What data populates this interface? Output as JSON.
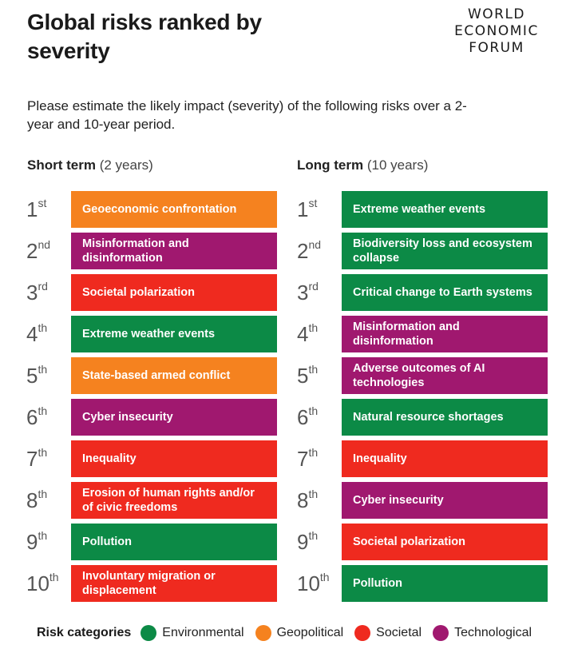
{
  "title": "Global risks ranked by severity",
  "logo": {
    "line1": "WORLD",
    "line2": "ECONOMIC",
    "line3": "FORUM"
  },
  "subtitle": "Please estimate the likely impact (severity) of the following risks over a 2-year and 10-year period.",
  "short_term": {
    "heading": "Short term",
    "period": "(2 years)",
    "rows": [
      {
        "rank_num": "1",
        "rank_suffix": "st",
        "risk": "Geoeconomic confrontation",
        "category": "geopolitical"
      },
      {
        "rank_num": "2",
        "rank_suffix": "nd",
        "risk": "Misinformation and disinformation",
        "category": "technological"
      },
      {
        "rank_num": "3",
        "rank_suffix": "rd",
        "risk": "Societal polarization",
        "category": "societal"
      },
      {
        "rank_num": "4",
        "rank_suffix": "th",
        "risk": "Extreme weather events",
        "category": "environmental"
      },
      {
        "rank_num": "5",
        "rank_suffix": "th",
        "risk": "State-based armed conflict",
        "category": "geopolitical"
      },
      {
        "rank_num": "6",
        "rank_suffix": "th",
        "risk": "Cyber insecurity",
        "category": "technological"
      },
      {
        "rank_num": "7",
        "rank_suffix": "th",
        "risk": "Inequality",
        "category": "societal"
      },
      {
        "rank_num": "8",
        "rank_suffix": "th",
        "risk": "Erosion of human rights and/or of civic freedoms",
        "category": "societal"
      },
      {
        "rank_num": "9",
        "rank_suffix": "th",
        "risk": "Pollution",
        "category": "environmental"
      },
      {
        "rank_num": "10",
        "rank_suffix": "th",
        "risk": "Involuntary migration or displacement",
        "category": "societal"
      }
    ]
  },
  "long_term": {
    "heading": "Long term",
    "period": "(10 years)",
    "rows": [
      {
        "rank_num": "1",
        "rank_suffix": "st",
        "risk": "Extreme weather events",
        "category": "environmental"
      },
      {
        "rank_num": "2",
        "rank_suffix": "nd",
        "risk": "Biodiversity loss and ecosystem collapse",
        "category": "environmental"
      },
      {
        "rank_num": "3",
        "rank_suffix": "rd",
        "risk": "Critical change to Earth systems",
        "category": "environmental"
      },
      {
        "rank_num": "4",
        "rank_suffix": "th",
        "risk": "Misinformation and disinformation",
        "category": "technological"
      },
      {
        "rank_num": "5",
        "rank_suffix": "th",
        "risk": "Adverse outcomes of AI technologies",
        "category": "technological"
      },
      {
        "rank_num": "6",
        "rank_suffix": "th",
        "risk": "Natural resource shortages",
        "category": "environmental"
      },
      {
        "rank_num": "7",
        "rank_suffix": "th",
        "risk": "Inequality",
        "category": "societal"
      },
      {
        "rank_num": "8",
        "rank_suffix": "th",
        "risk": "Cyber insecurity",
        "category": "technological"
      },
      {
        "rank_num": "9",
        "rank_suffix": "th",
        "risk": "Societal polarization",
        "category": "societal"
      },
      {
        "rank_num": "10",
        "rank_suffix": "th",
        "risk": "Pollution",
        "category": "environmental"
      }
    ]
  },
  "legend": {
    "title": "Risk categories",
    "items": [
      {
        "key": "environmental",
        "label": "Environmental",
        "color": "#0c8a46"
      },
      {
        "key": "geopolitical",
        "label": "Geopolitical",
        "color": "#f5821f"
      },
      {
        "key": "societal",
        "label": "Societal",
        "color": "#ef2a1f"
      },
      {
        "key": "technological",
        "label": "Technological",
        "color": "#a0186f"
      }
    ]
  }
}
